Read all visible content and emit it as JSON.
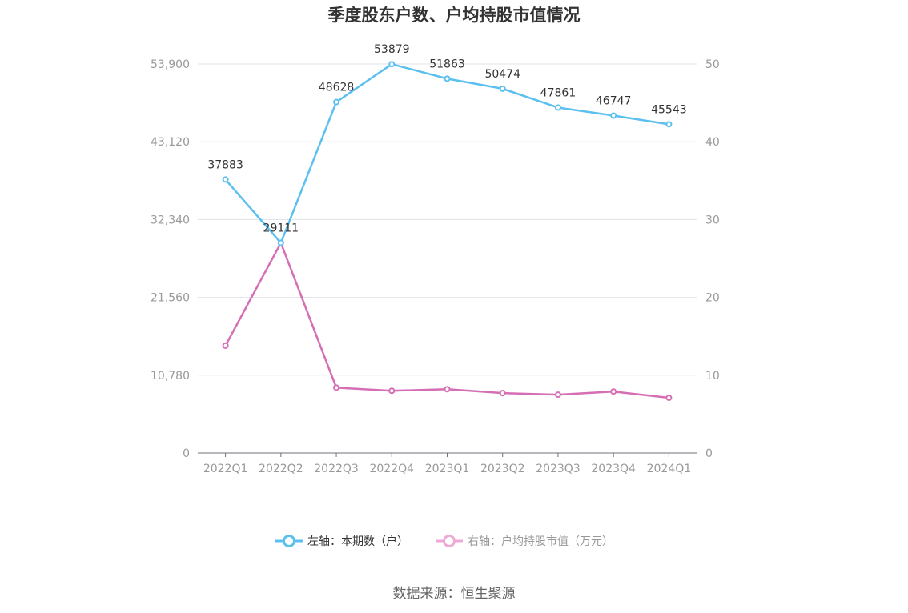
{
  "chart_data": {
    "type": "line",
    "title": "季度股东户数、户均持股市值情况",
    "categories": [
      "2022Q1",
      "2022Q2",
      "2022Q3",
      "2022Q4",
      "2023Q1",
      "2023Q2",
      "2023Q3",
      "2023Q4",
      "2024Q1"
    ],
    "left_axis": {
      "ticks": [
        "0",
        "10,780",
        "21,560",
        "32,340",
        "43,120",
        "53,900"
      ],
      "ylim": [
        0,
        53900
      ]
    },
    "right_axis": {
      "ticks": [
        "0",
        "10",
        "20",
        "30",
        "40",
        "50"
      ],
      "ylim": [
        0,
        50
      ]
    },
    "series": [
      {
        "name": "左轴：本期数（户）",
        "axis": "left",
        "color": "#5bc0f0",
        "values": [
          37883,
          29111,
          48628,
          53879,
          51863,
          50474,
          47861,
          46747,
          45543
        ],
        "labels": [
          "37883",
          "29111",
          "48628",
          "53879",
          "51863",
          "50474",
          "47861",
          "46747",
          "45543"
        ]
      },
      {
        "name": "右轴：户均持股市值（万元）",
        "axis": "right",
        "color": "#d56eb4",
        "legend_color": "#eea9d7",
        "values": [
          13.8,
          27.0,
          8.4,
          8.0,
          8.2,
          7.7,
          7.5,
          7.9,
          7.1
        ]
      }
    ],
    "grid": true,
    "legend_position": "bottom"
  },
  "source": "数据来源：恒生聚源"
}
